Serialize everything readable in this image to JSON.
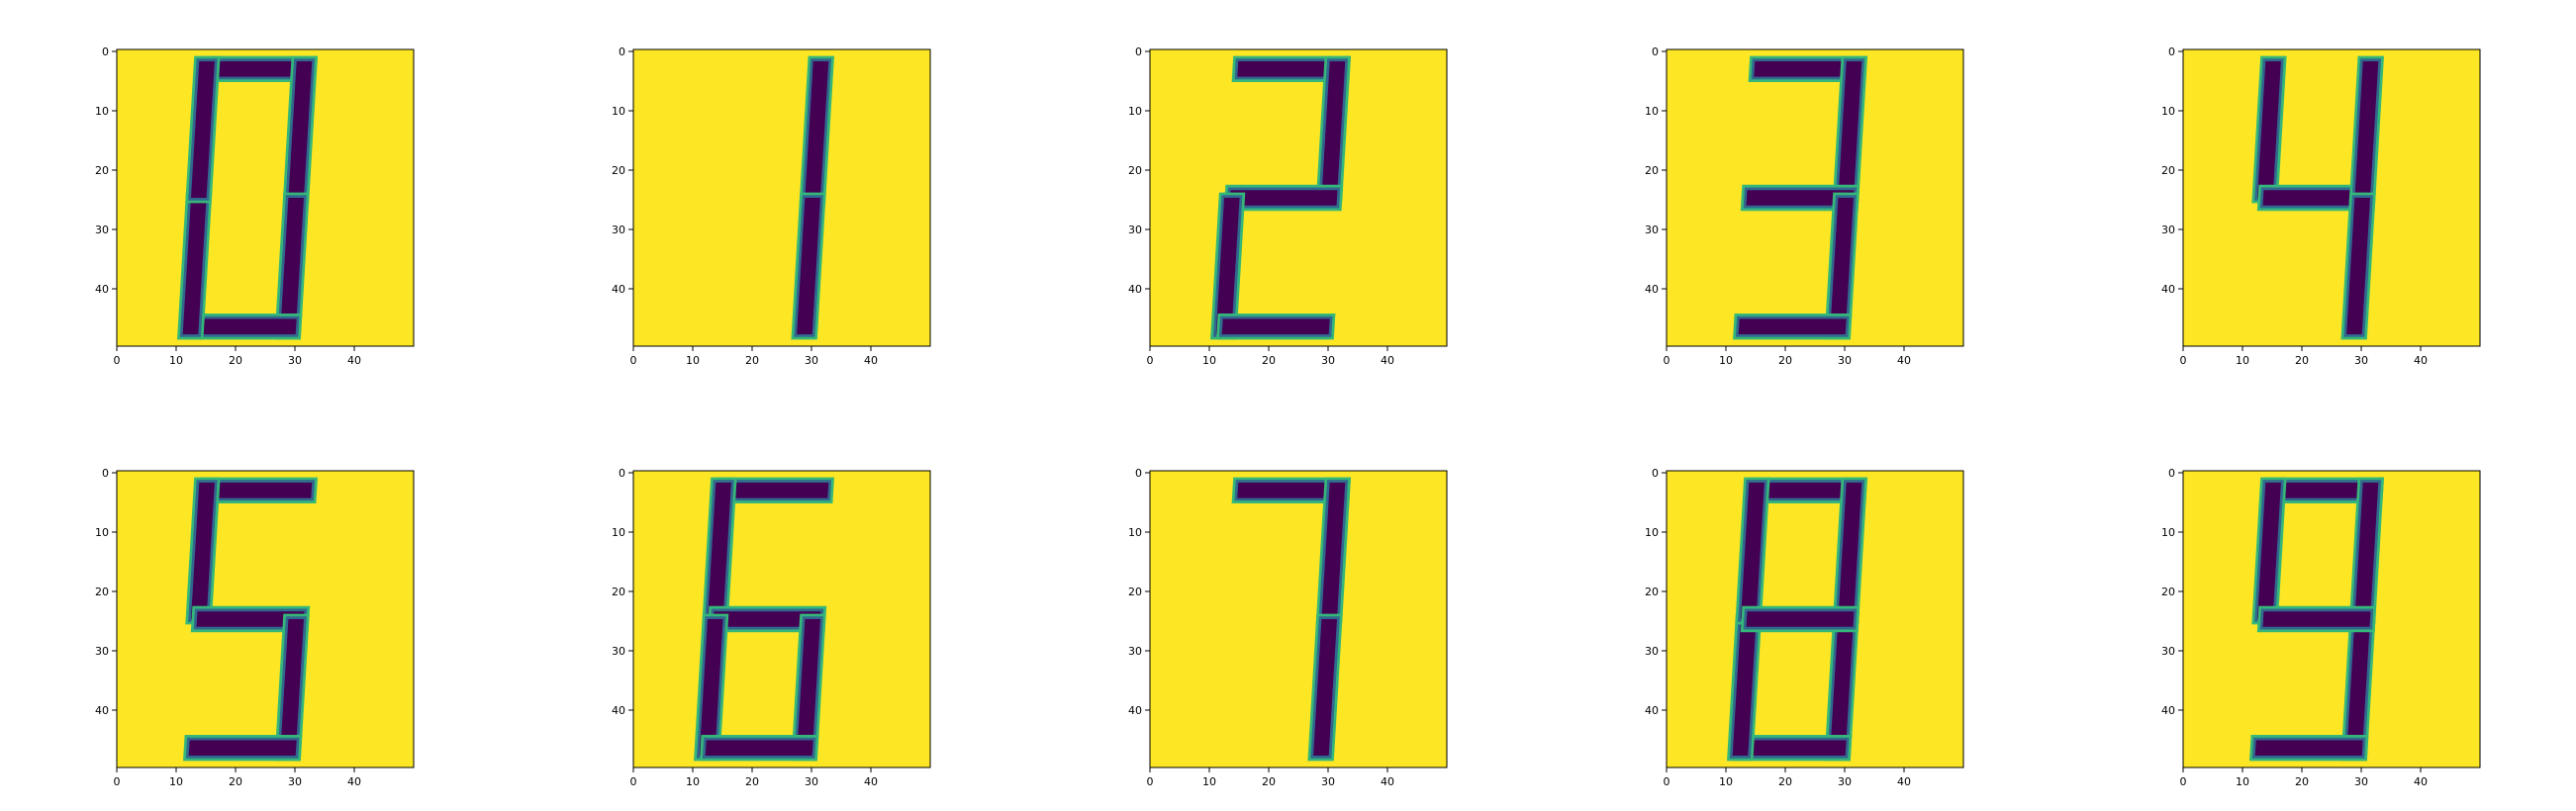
{
  "colors": {
    "background": "#fde725",
    "ink": "#440154",
    "edge_dark": "#31688e",
    "edge_light": "#35b779",
    "frame": "#000000"
  },
  "axis": {
    "xticks": [
      "0",
      "10",
      "20",
      "30",
      "40"
    ],
    "yticks": [
      "0",
      "10",
      "20",
      "30",
      "40"
    ]
  },
  "panels": [
    {
      "digit": "0",
      "segments": [
        "a",
        "b",
        "c",
        "d",
        "e",
        "f"
      ]
    },
    {
      "digit": "1",
      "segments": [
        "b",
        "c"
      ]
    },
    {
      "digit": "2",
      "segments": [
        "a",
        "b",
        "g",
        "e",
        "d"
      ]
    },
    {
      "digit": "3",
      "segments": [
        "a",
        "b",
        "g",
        "c",
        "d"
      ]
    },
    {
      "digit": "4",
      "segments": [
        "f",
        "g",
        "b",
        "c"
      ]
    },
    {
      "digit": "5",
      "segments": [
        "a",
        "f",
        "g",
        "c",
        "d"
      ]
    },
    {
      "digit": "6",
      "segments": [
        "a",
        "f",
        "g",
        "e",
        "c",
        "d"
      ]
    },
    {
      "digit": "7",
      "segments": [
        "a",
        "b",
        "c"
      ]
    },
    {
      "digit": "8",
      "segments": [
        "a",
        "b",
        "c",
        "d",
        "e",
        "f",
        "g"
      ]
    },
    {
      "digit": "9",
      "segments": [
        "a",
        "b",
        "c",
        "d",
        "f",
        "g"
      ]
    }
  ]
}
